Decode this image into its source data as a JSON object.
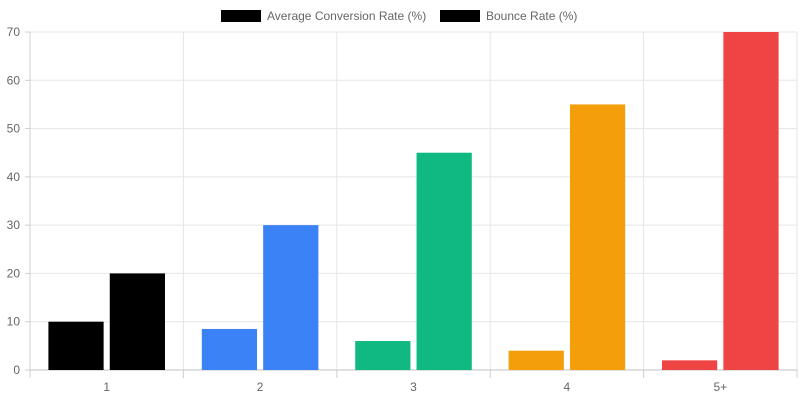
{
  "chart_data": {
    "type": "bar",
    "categories": [
      "1",
      "2",
      "3",
      "4",
      "5+"
    ],
    "series": [
      {
        "name": "Average Conversion Rate (%)",
        "values": [
          10,
          8.5,
          6,
          4,
          2
        ]
      },
      {
        "name": "Bounce Rate (%)",
        "values": [
          20,
          30,
          45,
          55,
          70
        ]
      }
    ],
    "bar_colors": [
      "#000000",
      "#3b82f6",
      "#10b981",
      "#f59e0b",
      "#ef4444"
    ],
    "legend_swatch_colors": [
      "#000000",
      "#000000"
    ],
    "ylim": [
      0,
      70
    ],
    "yticks": [
      0,
      10,
      20,
      30,
      40,
      50,
      60,
      70
    ],
    "grid": true,
    "legend_position": "top-center"
  }
}
